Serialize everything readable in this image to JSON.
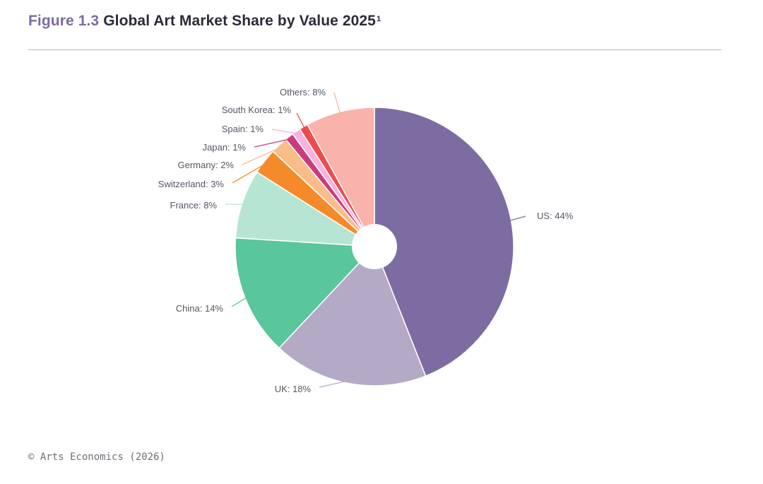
{
  "figure": {
    "number": "Figure 1.3",
    "title": "Global Art Market Share by Value 2025",
    "footnote_marker": "1"
  },
  "source": "© Arts Economics (2026)",
  "chart_data": {
    "type": "pie",
    "style": "donut",
    "start_angle_deg": 0,
    "direction": "clockwise",
    "labels_format": "{name}: {value}%",
    "slices": [
      {
        "name": "US",
        "value": 44,
        "color": "#7d6ca1"
      },
      {
        "name": "UK",
        "value": 18,
        "color": "#b4aac6"
      },
      {
        "name": "China",
        "value": 14,
        "color": "#59c69b"
      },
      {
        "name": "France",
        "value": 8,
        "color": "#b6e6d3"
      },
      {
        "name": "Switzerland",
        "value": 3,
        "color": "#f58a2a"
      },
      {
        "name": "Germany",
        "value": 2,
        "color": "#f9bd8a"
      },
      {
        "name": "Japan",
        "value": 1,
        "color": "#cc3a7e"
      },
      {
        "name": "Spain",
        "value": 1,
        "color": "#f7b2dd"
      },
      {
        "name": "South Korea",
        "value": 1,
        "color": "#ee4b4d"
      },
      {
        "name": "Others",
        "value": 8,
        "color": "#f9b3ac"
      }
    ]
  }
}
